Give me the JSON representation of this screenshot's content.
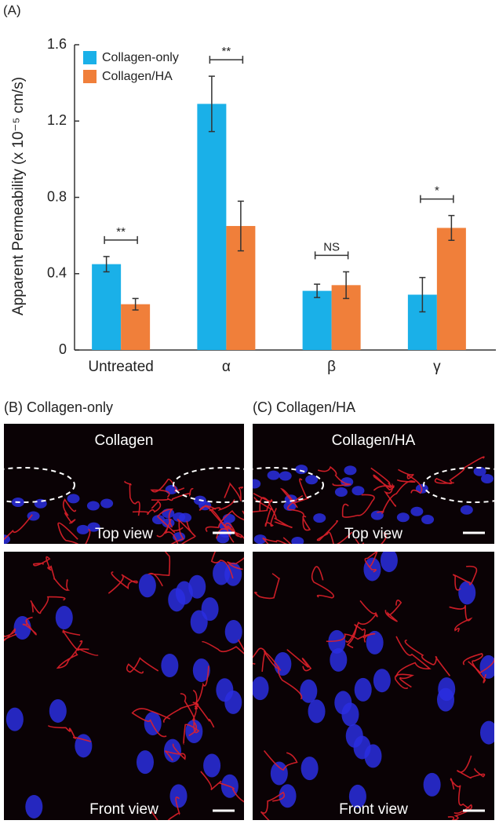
{
  "chart_data": {
    "type": "bar",
    "panel_label": "(A)",
    "ylabel": "Apparent Permeability (x 10⁻⁵ cm/s)",
    "categories": [
      "Untreated",
      "α",
      "β",
      "γ"
    ],
    "series": [
      {
        "name": "Collagen-only",
        "color": "#1ab0e8",
        "values": [
          0.45,
          1.29,
          0.31,
          0.29
        ],
        "errors": [
          0.04,
          0.145,
          0.035,
          0.09
        ]
      },
      {
        "name": "Collagen/HA",
        "color": "#f07f3a",
        "values": [
          0.24,
          0.65,
          0.34,
          0.64
        ],
        "errors": [
          0.03,
          0.13,
          0.07,
          0.065
        ]
      }
    ],
    "significance": [
      "**",
      "**",
      "NS",
      "*"
    ],
    "ylim": [
      0,
      1.6
    ],
    "yticks": [
      0,
      0.4,
      0.8,
      1.2,
      1.6
    ],
    "legend": "upper-left"
  },
  "images": [
    {
      "label": "(B) Collagen-only",
      "top_title": "Collagen",
      "top_caption": "Top view",
      "front_caption": "Front view"
    },
    {
      "label": "(C) Collagen/HA",
      "top_title": "Collagen/HA",
      "top_caption": "Top view",
      "front_caption": "Front view"
    }
  ]
}
